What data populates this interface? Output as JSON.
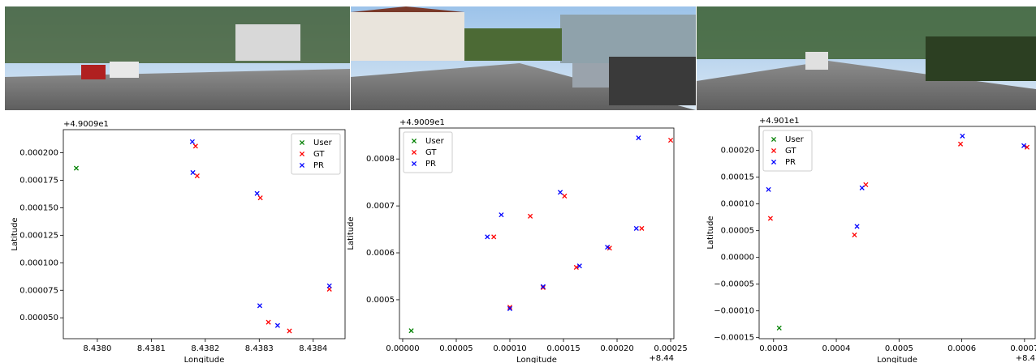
{
  "chart_data": [
    {
      "type": "scatter",
      "marker": "x",
      "xlabel": "Longitude",
      "ylabel": "Latitude",
      "y_offset": "+4.9009e1",
      "legend": "upper right",
      "xlim": [
        8.437937,
        8.438459
      ],
      "ylim": [
        3.1e-05,
        0.000221
      ],
      "xticks": [
        {
          "value": 8.438,
          "label": "8.4380"
        },
        {
          "value": 8.4381,
          "label": "8.4381"
        },
        {
          "value": 8.4382,
          "label": "8.4382"
        },
        {
          "value": 8.4383,
          "label": "8.4383"
        },
        {
          "value": 8.4384,
          "label": "8.4384"
        }
      ],
      "yticks": [
        {
          "value": 5e-05,
          "label": "0.000050"
        },
        {
          "value": 7.5e-05,
          "label": "0.000075"
        },
        {
          "value": 0.0001,
          "label": "0.000100"
        },
        {
          "value": 0.000125,
          "label": "0.000125"
        },
        {
          "value": 0.00015,
          "label": "0.000150"
        },
        {
          "value": 0.000175,
          "label": "0.000175"
        },
        {
          "value": 0.0002,
          "label": "0.000200"
        }
      ],
      "series": [
        {
          "name": "User",
          "color": "#008000",
          "x": [
            8.437961
          ],
          "values": [
            0.000186
          ]
        },
        {
          "name": "GT",
          "color": "#ff0000",
          "x": [
            8.438182,
            8.438185,
            8.438302,
            8.43843,
            8.438317,
            8.438356
          ],
          "values": [
            0.000206,
            0.000179,
            0.000159,
            7.6e-05,
            4.6e-05,
            3.8e-05
          ]
        },
        {
          "name": "PR",
          "color": "#0000ff",
          "x": [
            8.438176,
            8.438177,
            8.438296,
            8.43843,
            8.438301,
            8.438334
          ],
          "values": [
            0.00021,
            0.000182,
            0.000163,
            7.9e-05,
            6.1e-05,
            4.3e-05
          ]
        }
      ]
    },
    {
      "type": "scatter",
      "marker": "x",
      "xlabel": "Longitude",
      "ylabel": "Latitude",
      "y_offset": "+4.9009e1",
      "x_offset": "+8.44",
      "legend": "upper left",
      "xlim": [
        -3e-06,
        0.000253
      ],
      "ylim": [
        0.000417,
        0.000866
      ],
      "xticks": [
        {
          "value": 0,
          "label": "0.00000"
        },
        {
          "value": 5e-05,
          "label": "0.00005"
        },
        {
          "value": 0.0001,
          "label": "0.00010"
        },
        {
          "value": 0.00015,
          "label": "0.00015"
        },
        {
          "value": 0.0002,
          "label": "0.00020"
        },
        {
          "value": 0.00025,
          "label": "0.00025"
        }
      ],
      "yticks": [
        0.0005,
        0.0006,
        0.0007,
        0.0008
      ],
      "series": [
        {
          "name": "User",
          "color": "#008000",
          "x": [
            8e-06
          ],
          "values": [
            0.000434
          ]
        },
        {
          "name": "GT",
          "color": "#ff0000",
          "x": [
            0.00025,
            0.000151,
            0.000119,
            8.5e-05,
            0.000193,
            0.000162,
            0.000223,
            0.000131,
            0.0001
          ],
          "values": [
            0.00084,
            0.000721,
            0.000678,
            0.000634,
            0.00061,
            0.000569,
            0.000652,
            0.000526,
            0.000484
          ]
        },
        {
          "name": "PR",
          "color": "#0000ff",
          "x": [
            0.00022,
            0.000147,
            9.2e-05,
            7.9e-05,
            0.000191,
            0.000165,
            0.000218,
            0.000131,
            0.0001
          ],
          "values": [
            0.000845,
            0.000729,
            0.000681,
            0.000634,
            0.000612,
            0.000572,
            0.000652,
            0.000528,
            0.000481
          ]
        }
      ]
    },
    {
      "type": "scatter",
      "marker": "x",
      "xlabel": "Longitude",
      "ylabel": "Latitude",
      "y_offset": "+4.901e1",
      "x_offset": "+8.4",
      "legend": "upper left",
      "xlim": [
        0.000277,
        0.000717
      ],
      "ylim": [
        -0.000152,
        0.000245
      ],
      "xticks": [
        {
          "value": 0.0003,
          "label": "0.0003"
        },
        {
          "value": 0.0004,
          "label": "0.0004"
        },
        {
          "value": 0.0005,
          "label": "0.0005"
        },
        {
          "value": 0.0006,
          "label": "0.0006"
        },
        {
          "value": 0.0007,
          "label": "0.0007"
        }
      ],
      "yticks": [
        {
          "value": -0.00015,
          "label": "−0.00015"
        },
        {
          "value": -0.0001,
          "label": "−0.00010"
        },
        {
          "value": -5e-05,
          "label": "−0.00005"
        },
        {
          "value": 0,
          "label": "0.00000"
        },
        {
          "value": 5e-05,
          "label": "0.00005"
        },
        {
          "value": 0.0001,
          "label": "0.00010"
        },
        {
          "value": 0.00015,
          "label": "0.00015"
        },
        {
          "value": 0.0002,
          "label": "0.00020"
        }
      ],
      "series": [
        {
          "name": "User",
          "color": "#008000",
          "x": [
            0.000309
          ],
          "values": [
            -0.000132
          ]
        },
        {
          "name": "GT",
          "color": "#ff0000",
          "x": [
            0.000295,
            0.000429,
            0.000447,
            0.000598,
            0.000704
          ],
          "values": [
            7.3e-05,
            4.2e-05,
            0.000136,
            0.000212,
            0.000206
          ]
        },
        {
          "name": "PR",
          "color": "#0000ff",
          "x": [
            0.000292,
            0.000433,
            0.000441,
            0.000601,
            0.000699
          ],
          "values": [
            0.000127,
            5.8e-05,
            0.00013,
            0.000227,
            0.000209
          ]
        }
      ]
    }
  ]
}
